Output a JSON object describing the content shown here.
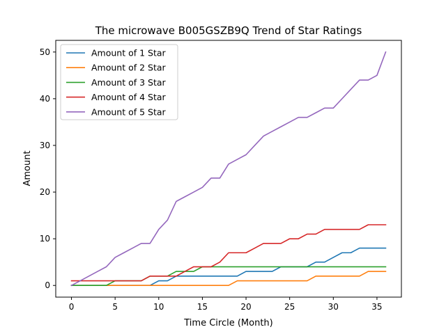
{
  "chart_data": {
    "type": "line",
    "title": "The microwave B005GSZB9Q Trend of Star Ratings",
    "xlabel": "Time Circle (Month)",
    "ylabel": "Amount",
    "xlim": [
      -1.8,
      37.8
    ],
    "ylim": [
      -2.5,
      52.5
    ],
    "xticks": [
      0,
      5,
      10,
      15,
      20,
      25,
      30,
      35
    ],
    "yticks": [
      0,
      10,
      20,
      30,
      40,
      50
    ],
    "grid": false,
    "legend": "upper-left",
    "x": [
      0,
      1,
      2,
      3,
      4,
      5,
      6,
      7,
      8,
      9,
      10,
      11,
      12,
      13,
      14,
      15,
      16,
      17,
      18,
      19,
      20,
      21,
      22,
      23,
      24,
      25,
      26,
      27,
      28,
      29,
      30,
      31,
      32,
      33,
      34,
      35,
      36
    ],
    "series": [
      {
        "name": "Amount of 1 Star",
        "color": "#1f77b4",
        "values": [
          0,
          0,
          0,
          0,
          0,
          0,
          0,
          0,
          0,
          0,
          1,
          1,
          2,
          2,
          2,
          2,
          2,
          2,
          2,
          2,
          3,
          3,
          3,
          3,
          4,
          4,
          4,
          4,
          5,
          5,
          6,
          7,
          7,
          8,
          8,
          8,
          8
        ]
      },
      {
        "name": "Amount of 2 Star",
        "color": "#ff7f0e",
        "values": [
          0,
          0,
          0,
          0,
          0,
          0,
          0,
          0,
          0,
          0,
          0,
          0,
          0,
          0,
          0,
          0,
          0,
          0,
          0,
          1,
          1,
          1,
          1,
          1,
          1,
          1,
          1,
          1,
          2,
          2,
          2,
          2,
          2,
          2,
          3,
          3,
          3
        ]
      },
      {
        "name": "Amount of 3 Star",
        "color": "#2ca02c",
        "values": [
          0,
          0,
          0,
          0,
          0,
          1,
          1,
          1,
          1,
          2,
          2,
          2,
          3,
          3,
          3,
          4,
          4,
          4,
          4,
          4,
          4,
          4,
          4,
          4,
          4,
          4,
          4,
          4,
          4,
          4,
          4,
          4,
          4,
          4,
          4,
          4,
          4
        ]
      },
      {
        "name": "Amount of 4 Star",
        "color": "#d62728",
        "values": [
          1,
          1,
          1,
          1,
          1,
          1,
          1,
          1,
          1,
          2,
          2,
          2,
          2,
          3,
          4,
          4,
          4,
          5,
          7,
          7,
          7,
          8,
          9,
          9,
          9,
          10,
          10,
          11,
          11,
          12,
          12,
          12,
          12,
          12,
          13,
          13,
          13
        ]
      },
      {
        "name": "Amount of 5 Star",
        "color": "#9467bd",
        "values": [
          0,
          1,
          2,
          3,
          4,
          6,
          7,
          8,
          9,
          9,
          12,
          14,
          18,
          19,
          20,
          21,
          23,
          23,
          26,
          27,
          28,
          30,
          32,
          33,
          34,
          35,
          36,
          36,
          37,
          38,
          38,
          40,
          42,
          44,
          44,
          45,
          50
        ]
      }
    ]
  }
}
